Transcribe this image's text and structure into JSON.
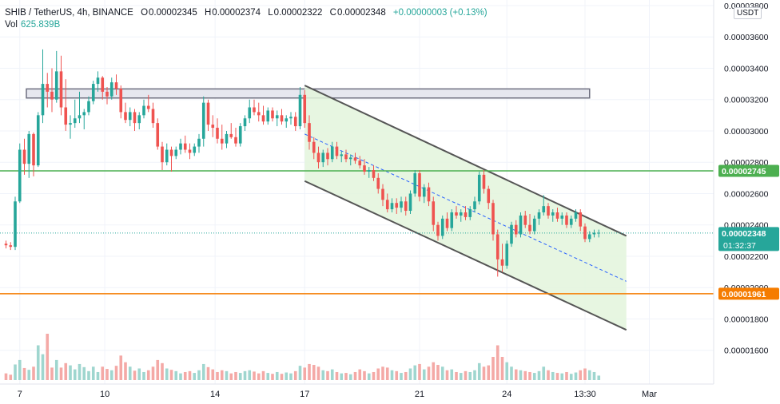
{
  "header": {
    "symbol": "SHIB / TetherUS, 4h, BINANCE",
    "open_label": "O",
    "open": "0.00002345",
    "high_label": "H",
    "high": "0.00002374",
    "low_label": "L",
    "low": "0.00002322",
    "close_label": "C",
    "close": "0.00002348",
    "change": "+0.00000003 (+0.13%)",
    "volume_label": "Vol",
    "volume": "625.839B",
    "currency": "USDT"
  },
  "colors": {
    "up": "#26a69a",
    "down": "#ef5350",
    "vol_up": "#9fd6cf",
    "vol_down": "#f4a9a6",
    "channel_fill": "#e3f4dc",
    "channel_line": "#555555",
    "resistance_line": "#4caf50",
    "support_line": "#f57c00",
    "zone_fill": "#e6e7ef",
    "zone_stroke": "#6e6f80",
    "midline": "#2962ff"
  },
  "chart_data": {
    "type": "candlestick",
    "title": "SHIB / TetherUS, 4h, BINANCE",
    "ylim": [
      1.55e-05,
      3.81e-05
    ],
    "y_ticks": [
      "0.00003800",
      "0.00003600",
      "0.00003400",
      "0.00003200",
      "0.00003000",
      "0.00002800",
      "0.00002600",
      "0.00002400",
      "0.00002200",
      "0.00002000",
      "0.00001800",
      "0.00001600"
    ],
    "x_ticks": [
      "7",
      "10",
      "14",
      "17",
      "21",
      "24",
      "13:30",
      "Mar"
    ],
    "price_tags": [
      {
        "label": "0.00002745",
        "value": 2.745e-05,
        "color": "#4caf50",
        "kind": "resistance"
      },
      {
        "label": "0.00002348",
        "value": 2.348e-05,
        "color": "#26a69a",
        "kind": "last",
        "countdown": "01:32:37"
      },
      {
        "label": "0.00001961",
        "value": 1.961e-05,
        "color": "#f57c00",
        "kind": "support"
      }
    ],
    "horizontal_lines": [
      {
        "value": 2.745e-05,
        "color": "#4caf50"
      },
      {
        "value": 1.961e-05,
        "color": "#f57c00"
      }
    ],
    "zone": {
      "top": 3.268e-05,
      "bottom": 3.21e-05,
      "from_index": 2,
      "to_index": 127
    },
    "channel": {
      "upper": [
        {
          "i": 65,
          "v": 3.29e-05
        },
        {
          "i": 135,
          "v": 2.33e-05
        }
      ],
      "lower": [
        {
          "i": 65,
          "v": 2.68e-05
        },
        {
          "i": 135,
          "v": 1.73e-05
        }
      ],
      "mid": [
        {
          "i": 65,
          "v": 2.98e-05
        },
        {
          "i": 135,
          "v": 2.04e-05
        }
      ]
    },
    "candles": [
      {
        "o": 2.28,
        "h": 2.3,
        "l": 2.25,
        "c": 2.27,
        "v": 15
      },
      {
        "o": 2.27,
        "h": 2.29,
        "l": 2.24,
        "c": 2.26,
        "v": 12
      },
      {
        "o": 2.26,
        "h": 2.58,
        "l": 2.24,
        "c": 2.55,
        "v": 35
      },
      {
        "o": 2.55,
        "h": 2.92,
        "l": 2.54,
        "c": 2.88,
        "v": 45
      },
      {
        "o": 2.88,
        "h": 2.95,
        "l": 2.72,
        "c": 2.79,
        "v": 27
      },
      {
        "o": 2.79,
        "h": 3.0,
        "l": 2.7,
        "c": 2.98,
        "v": 23
      },
      {
        "o": 2.98,
        "h": 2.99,
        "l": 2.71,
        "c": 2.78,
        "v": 30
      },
      {
        "o": 2.78,
        "h": 3.12,
        "l": 2.77,
        "c": 3.1,
        "v": 78
      },
      {
        "o": 3.1,
        "h": 3.52,
        "l": 3.05,
        "c": 3.3,
        "v": 58
      },
      {
        "o": 3.3,
        "h": 3.37,
        "l": 3.15,
        "c": 3.25,
        "v": 104
      },
      {
        "o": 3.25,
        "h": 3.4,
        "l": 3.12,
        "c": 3.2,
        "v": 28
      },
      {
        "o": 3.2,
        "h": 3.51,
        "l": 3.18,
        "c": 3.38,
        "v": 45
      },
      {
        "o": 3.38,
        "h": 3.48,
        "l": 3.1,
        "c": 3.15,
        "v": 28
      },
      {
        "o": 3.15,
        "h": 3.33,
        "l": 3.0,
        "c": 3.04,
        "v": 38
      },
      {
        "o": 3.04,
        "h": 3.1,
        "l": 2.95,
        "c": 3.05,
        "v": 33
      },
      {
        "o": 3.05,
        "h": 3.2,
        "l": 3.02,
        "c": 3.08,
        "v": 24
      },
      {
        "o": 3.08,
        "h": 3.25,
        "l": 3.05,
        "c": 3.1,
        "v": 36
      },
      {
        "o": 3.1,
        "h": 3.14,
        "l": 3.01,
        "c": 3.12,
        "v": 29
      },
      {
        "o": 3.12,
        "h": 3.22,
        "l": 3.1,
        "c": 3.19,
        "v": 20
      },
      {
        "o": 3.19,
        "h": 3.32,
        "l": 3.17,
        "c": 3.3,
        "v": 30
      },
      {
        "o": 3.3,
        "h": 3.38,
        "l": 3.25,
        "c": 3.34,
        "v": 18
      },
      {
        "o": 3.34,
        "h": 3.35,
        "l": 3.2,
        "c": 3.25,
        "v": 30
      },
      {
        "o": 3.25,
        "h": 3.28,
        "l": 3.17,
        "c": 3.22,
        "v": 25
      },
      {
        "o": 3.22,
        "h": 3.34,
        "l": 3.2,
        "c": 3.31,
        "v": 22
      },
      {
        "o": 3.31,
        "h": 3.36,
        "l": 3.23,
        "c": 3.27,
        "v": 32
      },
      {
        "o": 3.27,
        "h": 3.29,
        "l": 3.08,
        "c": 3.12,
        "v": 55
      },
      {
        "o": 3.12,
        "h": 3.18,
        "l": 3.05,
        "c": 3.07,
        "v": 40
      },
      {
        "o": 3.07,
        "h": 3.15,
        "l": 3.03,
        "c": 3.12,
        "v": 30
      },
      {
        "o": 3.12,
        "h": 3.14,
        "l": 3.0,
        "c": 3.05,
        "v": 21
      },
      {
        "o": 3.05,
        "h": 3.12,
        "l": 3.01,
        "c": 3.1,
        "v": 26
      },
      {
        "o": 3.1,
        "h": 3.2,
        "l": 3.08,
        "c": 3.16,
        "v": 18
      },
      {
        "o": 3.16,
        "h": 3.23,
        "l": 3.12,
        "c": 3.14,
        "v": 22
      },
      {
        "o": 3.14,
        "h": 3.18,
        "l": 3.02,
        "c": 3.05,
        "v": 30
      },
      {
        "o": 3.05,
        "h": 3.08,
        "l": 2.88,
        "c": 2.9,
        "v": 45
      },
      {
        "o": 2.9,
        "h": 2.93,
        "l": 2.75,
        "c": 2.8,
        "v": 38
      },
      {
        "o": 2.8,
        "h": 2.92,
        "l": 2.78,
        "c": 2.88,
        "v": 26
      },
      {
        "o": 2.88,
        "h": 2.9,
        "l": 2.74,
        "c": 2.84,
        "v": 23
      },
      {
        "o": 2.84,
        "h": 2.9,
        "l": 2.82,
        "c": 2.88,
        "v": 20
      },
      {
        "o": 2.88,
        "h": 2.95,
        "l": 2.85,
        "c": 2.92,
        "v": 15
      },
      {
        "o": 2.92,
        "h": 2.97,
        "l": 2.86,
        "c": 2.88,
        "v": 18
      },
      {
        "o": 2.88,
        "h": 2.92,
        "l": 2.82,
        "c": 2.86,
        "v": 20
      },
      {
        "o": 2.86,
        "h": 2.92,
        "l": 2.84,
        "c": 2.9,
        "v": 16
      },
      {
        "o": 2.9,
        "h": 2.98,
        "l": 2.86,
        "c": 2.95,
        "v": 22
      },
      {
        "o": 2.95,
        "h": 3.22,
        "l": 2.9,
        "c": 3.18,
        "v": 36
      },
      {
        "o": 3.18,
        "h": 3.2,
        "l": 3.0,
        "c": 3.04,
        "v": 29
      },
      {
        "o": 3.04,
        "h": 3.1,
        "l": 2.96,
        "c": 3.02,
        "v": 24
      },
      {
        "o": 3.02,
        "h": 3.08,
        "l": 2.92,
        "c": 2.95,
        "v": 18
      },
      {
        "o": 2.95,
        "h": 3.04,
        "l": 2.88,
        "c": 2.92,
        "v": 22
      },
      {
        "o": 2.92,
        "h": 3.0,
        "l": 2.89,
        "c": 2.98,
        "v": 20
      },
      {
        "o": 2.98,
        "h": 3.05,
        "l": 2.95,
        "c": 2.96,
        "v": 15
      },
      {
        "o": 2.96,
        "h": 3.02,
        "l": 2.9,
        "c": 2.92,
        "v": 18
      },
      {
        "o": 2.92,
        "h": 3.05,
        "l": 2.9,
        "c": 3.03,
        "v": 16
      },
      {
        "o": 3.03,
        "h": 3.1,
        "l": 3.0,
        "c": 3.08,
        "v": 20
      },
      {
        "o": 3.08,
        "h": 3.2,
        "l": 3.05,
        "c": 3.15,
        "v": 22
      },
      {
        "o": 3.15,
        "h": 3.2,
        "l": 3.1,
        "c": 3.12,
        "v": 19
      },
      {
        "o": 3.12,
        "h": 3.18,
        "l": 3.06,
        "c": 3.1,
        "v": 15
      },
      {
        "o": 3.1,
        "h": 3.16,
        "l": 3.04,
        "c": 3.06,
        "v": 20
      },
      {
        "o": 3.06,
        "h": 3.15,
        "l": 3.04,
        "c": 3.13,
        "v": 16
      },
      {
        "o": 3.13,
        "h": 3.15,
        "l": 3.06,
        "c": 3.08,
        "v": 14
      },
      {
        "o": 3.08,
        "h": 3.13,
        "l": 3.03,
        "c": 3.1,
        "v": 18
      },
      {
        "o": 3.1,
        "h": 3.14,
        "l": 3.04,
        "c": 3.06,
        "v": 14
      },
      {
        "o": 3.06,
        "h": 3.1,
        "l": 3.02,
        "c": 3.08,
        "v": 17
      },
      {
        "o": 3.08,
        "h": 3.12,
        "l": 3.04,
        "c": 3.09,
        "v": 15
      },
      {
        "o": 3.09,
        "h": 3.12,
        "l": 3.0,
        "c": 3.03,
        "v": 20
      },
      {
        "o": 3.03,
        "h": 3.28,
        "l": 3.01,
        "c": 3.23,
        "v": 32
      },
      {
        "o": 3.23,
        "h": 3.26,
        "l": 3.02,
        "c": 3.05,
        "v": 28
      },
      {
        "o": 3.05,
        "h": 3.1,
        "l": 2.88,
        "c": 2.93,
        "v": 36
      },
      {
        "o": 2.93,
        "h": 2.96,
        "l": 2.82,
        "c": 2.86,
        "v": 34
      },
      {
        "o": 2.86,
        "h": 2.9,
        "l": 2.76,
        "c": 2.8,
        "v": 30
      },
      {
        "o": 2.8,
        "h": 2.88,
        "l": 2.77,
        "c": 2.86,
        "v": 22
      },
      {
        "o": 2.86,
        "h": 2.89,
        "l": 2.78,
        "c": 2.82,
        "v": 20
      },
      {
        "o": 2.82,
        "h": 2.93,
        "l": 2.8,
        "c": 2.9,
        "v": 24
      },
      {
        "o": 2.9,
        "h": 2.93,
        "l": 2.82,
        "c": 2.84,
        "v": 18
      },
      {
        "o": 2.84,
        "h": 2.87,
        "l": 2.8,
        "c": 2.85,
        "v": 15
      },
      {
        "o": 2.85,
        "h": 2.88,
        "l": 2.8,
        "c": 2.82,
        "v": 16
      },
      {
        "o": 2.82,
        "h": 2.85,
        "l": 2.78,
        "c": 2.83,
        "v": 13
      },
      {
        "o": 2.83,
        "h": 2.86,
        "l": 2.79,
        "c": 2.81,
        "v": 18
      },
      {
        "o": 2.81,
        "h": 2.84,
        "l": 2.76,
        "c": 2.78,
        "v": 24
      },
      {
        "o": 2.78,
        "h": 2.82,
        "l": 2.72,
        "c": 2.74,
        "v": 20
      },
      {
        "o": 2.74,
        "h": 2.77,
        "l": 2.7,
        "c": 2.75,
        "v": 15
      },
      {
        "o": 2.75,
        "h": 2.78,
        "l": 2.68,
        "c": 2.7,
        "v": 18
      },
      {
        "o": 2.7,
        "h": 2.73,
        "l": 2.6,
        "c": 2.63,
        "v": 26
      },
      {
        "o": 2.63,
        "h": 2.66,
        "l": 2.52,
        "c": 2.56,
        "v": 30
      },
      {
        "o": 2.56,
        "h": 2.6,
        "l": 2.48,
        "c": 2.5,
        "v": 28
      },
      {
        "o": 2.5,
        "h": 2.57,
        "l": 2.48,
        "c": 2.54,
        "v": 22
      },
      {
        "o": 2.54,
        "h": 2.57,
        "l": 2.47,
        "c": 2.51,
        "v": 20
      },
      {
        "o": 2.51,
        "h": 2.58,
        "l": 2.48,
        "c": 2.55,
        "v": 16
      },
      {
        "o": 2.55,
        "h": 2.58,
        "l": 2.46,
        "c": 2.49,
        "v": 18
      },
      {
        "o": 2.49,
        "h": 2.62,
        "l": 2.47,
        "c": 2.6,
        "v": 26
      },
      {
        "o": 2.6,
        "h": 2.75,
        "l": 2.58,
        "c": 2.73,
        "v": 33
      },
      {
        "o": 2.73,
        "h": 2.75,
        "l": 2.55,
        "c": 2.58,
        "v": 36
      },
      {
        "o": 2.58,
        "h": 2.66,
        "l": 2.54,
        "c": 2.64,
        "v": 24
      },
      {
        "o": 2.64,
        "h": 2.67,
        "l": 2.52,
        "c": 2.55,
        "v": 30
      },
      {
        "o": 2.55,
        "h": 2.58,
        "l": 2.36,
        "c": 2.4,
        "v": 40
      },
      {
        "o": 2.4,
        "h": 2.42,
        "l": 2.3,
        "c": 2.33,
        "v": 34
      },
      {
        "o": 2.33,
        "h": 2.46,
        "l": 2.31,
        "c": 2.44,
        "v": 30
      },
      {
        "o": 2.44,
        "h": 2.48,
        "l": 2.36,
        "c": 2.38,
        "v": 22
      },
      {
        "o": 2.38,
        "h": 2.5,
        "l": 2.36,
        "c": 2.48,
        "v": 24
      },
      {
        "o": 2.48,
        "h": 2.52,
        "l": 2.44,
        "c": 2.46,
        "v": 18
      },
      {
        "o": 2.46,
        "h": 2.5,
        "l": 2.42,
        "c": 2.48,
        "v": 16
      },
      {
        "o": 2.48,
        "h": 2.52,
        "l": 2.43,
        "c": 2.45,
        "v": 20
      },
      {
        "o": 2.45,
        "h": 2.52,
        "l": 2.43,
        "c": 2.5,
        "v": 18
      },
      {
        "o": 2.5,
        "h": 2.58,
        "l": 2.48,
        "c": 2.55,
        "v": 22
      },
      {
        "o": 2.55,
        "h": 2.74,
        "l": 2.53,
        "c": 2.72,
        "v": 38
      },
      {
        "o": 2.72,
        "h": 2.75,
        "l": 2.6,
        "c": 2.63,
        "v": 30
      },
      {
        "o": 2.63,
        "h": 2.65,
        "l": 2.5,
        "c": 2.54,
        "v": 33
      },
      {
        "o": 2.54,
        "h": 2.56,
        "l": 2.3,
        "c": 2.34,
        "v": 52
      },
      {
        "o": 2.34,
        "h": 2.37,
        "l": 2.07,
        "c": 2.18,
        "v": 78
      },
      {
        "o": 2.18,
        "h": 2.28,
        "l": 2.1,
        "c": 2.14,
        "v": 52
      },
      {
        "o": 2.14,
        "h": 2.3,
        "l": 2.12,
        "c": 2.28,
        "v": 40
      },
      {
        "o": 2.28,
        "h": 2.42,
        "l": 2.26,
        "c": 2.4,
        "v": 30
      },
      {
        "o": 2.4,
        "h": 2.43,
        "l": 2.32,
        "c": 2.34,
        "v": 24
      },
      {
        "o": 2.34,
        "h": 2.48,
        "l": 2.32,
        "c": 2.46,
        "v": 22
      },
      {
        "o": 2.46,
        "h": 2.49,
        "l": 2.38,
        "c": 2.4,
        "v": 20
      },
      {
        "o": 2.4,
        "h": 2.47,
        "l": 2.34,
        "c": 2.36,
        "v": 18
      },
      {
        "o": 2.36,
        "h": 2.46,
        "l": 2.34,
        "c": 2.44,
        "v": 16
      },
      {
        "o": 2.44,
        "h": 2.5,
        "l": 2.4,
        "c": 2.48,
        "v": 20
      },
      {
        "o": 2.48,
        "h": 2.59,
        "l": 2.46,
        "c": 2.52,
        "v": 30
      },
      {
        "o": 2.52,
        "h": 2.54,
        "l": 2.44,
        "c": 2.46,
        "v": 22
      },
      {
        "o": 2.46,
        "h": 2.5,
        "l": 2.42,
        "c": 2.48,
        "v": 18
      },
      {
        "o": 2.48,
        "h": 2.51,
        "l": 2.42,
        "c": 2.44,
        "v": 16
      },
      {
        "o": 2.44,
        "h": 2.48,
        "l": 2.4,
        "c": 2.46,
        "v": 15
      },
      {
        "o": 2.46,
        "h": 2.48,
        "l": 2.38,
        "c": 2.4,
        "v": 18
      },
      {
        "o": 2.4,
        "h": 2.46,
        "l": 2.38,
        "c": 2.44,
        "v": 14
      },
      {
        "o": 2.44,
        "h": 2.5,
        "l": 2.42,
        "c": 2.48,
        "v": 17
      },
      {
        "o": 2.48,
        "h": 2.5,
        "l": 2.36,
        "c": 2.39,
        "v": 22
      },
      {
        "o": 2.39,
        "h": 2.41,
        "l": 2.29,
        "c": 2.31,
        "v": 26
      },
      {
        "o": 2.31,
        "h": 2.36,
        "l": 2.29,
        "c": 2.34,
        "v": 22
      },
      {
        "o": 2.34,
        "h": 2.37,
        "l": 2.32,
        "c": 2.35,
        "v": 18
      },
      {
        "o": 2.35,
        "h": 2.37,
        "l": 2.32,
        "c": 2.35,
        "v": 10
      }
    ]
  }
}
